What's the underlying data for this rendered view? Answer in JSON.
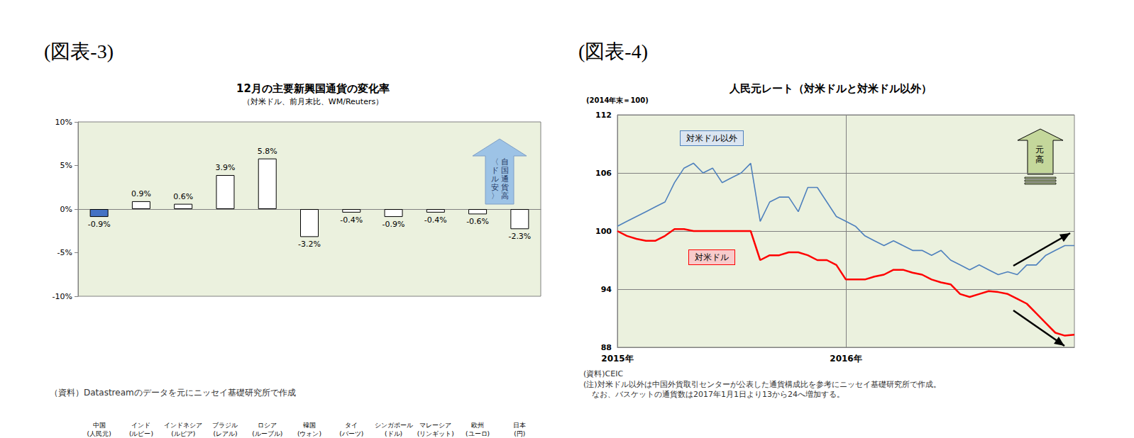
{
  "chart_data": [
    {
      "type": "bar",
      "figure_label": "(図表-3)",
      "title": "12月の主要新興国通貨の変化率",
      "subtitle": "（対米ドル、前月末比、WM/Reuters）",
      "categories": [
        "中国\n(人民元)",
        "インド\n(ルピー)",
        "インドネシア\n(ルピア)",
        "ブラジル\n(レアル)",
        "ロシア\n(ルーブル)",
        "韓国\n(ウォン)",
        "タイ\n(バーツ)",
        "シンガポール\n(ドル)",
        "マレーシア\n(リンギット)",
        "欧州\n(ユーロ)",
        "日本\n(円)"
      ],
      "values": [
        -0.9,
        0.9,
        0.6,
        3.9,
        5.8,
        -3.2,
        -0.4,
        -0.9,
        -0.4,
        -0.6,
        -2.3
      ],
      "value_labels": [
        "-0.9%",
        "0.9%",
        "0.6%",
        "3.9%",
        "5.8%",
        "-3.2%",
        "-0.4%",
        "-0.9%",
        "-0.4%",
        "-0.6%",
        "-2.3%"
      ],
      "colors": [
        "#4472c4",
        "#ffffff",
        "#ffffff",
        "#ffffff",
        "#ffffff",
        "#ffffff",
        "#ffffff",
        "#ffffff",
        "#ffffff",
        "#ffffff",
        "#ffffff"
      ],
      "ylim": [
        -10,
        10
      ],
      "yticks": [
        {
          "value": -10,
          "label": "-10%"
        },
        {
          "value": -5,
          "label": "-5%"
        },
        {
          "value": 0,
          "label": "0%"
        },
        {
          "value": 5,
          "label": "5%"
        },
        {
          "value": 10,
          "label": "10%"
        }
      ],
      "grid": false,
      "data_labels": true,
      "annotations": [
        {
          "text": [
            "自国通貨高",
            "〈ドル安〉"
          ]
        }
      ],
      "source": "（資料）Datastreamのデータを元にニッセイ基礎研究所で作成"
    },
    {
      "type": "line",
      "figure_label": "(図表-4)",
      "title": "人民元レート（対米ドルと対米ドル以外）",
      "y_unit_label": "(2014年末＝100)",
      "categories": [
        "2015年",
        null,
        null,
        null,
        null,
        null,
        null,
        null,
        null,
        null,
        null,
        null,
        null,
        null,
        null,
        null,
        null,
        null,
        null,
        null,
        null,
        null,
        null,
        null,
        "2016年",
        null,
        null,
        null,
        null,
        null,
        null,
        null,
        null,
        null,
        null,
        null,
        null,
        null,
        null,
        null,
        null,
        null,
        null,
        null,
        null,
        null,
        null,
        null,
        null
      ],
      "series": [
        {
          "name": "対米ドル以外",
          "color": "#4f81bd",
          "values": [
            100.5,
            101,
            101.5,
            102,
            102.5,
            103,
            105,
            106.5,
            107,
            106,
            106.5,
            105,
            105.5,
            106,
            107,
            101,
            103,
            103.5,
            103.5,
            102,
            104.5,
            104.5,
            103,
            101.5,
            101,
            100.5,
            99.5,
            99,
            98.5,
            99,
            98.5,
            98,
            98,
            97.5,
            98,
            97,
            96.5,
            96,
            96.5,
            96,
            95.5,
            95.8,
            95.5,
            96.5,
            96.5,
            97.5,
            98,
            98.5,
            98.5
          ]
        },
        {
          "name": "対米ドル",
          "color": "#ff0000",
          "values": [
            100,
            99.5,
            99.2,
            99,
            99,
            99.5,
            100.2,
            100.2,
            100,
            100,
            100,
            100,
            100,
            100,
            100,
            97,
            97.5,
            97.5,
            97.8,
            97.8,
            97.5,
            97,
            97,
            96.5,
            95,
            95,
            95,
            95.3,
            95.5,
            96,
            96,
            95.7,
            95.5,
            95,
            94.7,
            94.5,
            93.5,
            93.2,
            93.5,
            93.8,
            93.7,
            93.5,
            93,
            92.5,
            91.5,
            90.5,
            89.5,
            89.2,
            89.3
          ]
        }
      ],
      "ylim": [
        88,
        112
      ],
      "yticks": [
        88,
        94,
        100,
        106,
        112
      ],
      "grid": true,
      "annotations": [
        {
          "text": [
            "元高"
          ]
        }
      ],
      "source": "(資料)CEIC",
      "note": [
        "(注)対米ドル以外は中国外貨取引センターが公表した通貨構成比を参考にニッセイ基礎研究所で作成。",
        "なお、バスケットの通貨数は2017年1月1日より13から24へ増加する。"
      ]
    }
  ]
}
